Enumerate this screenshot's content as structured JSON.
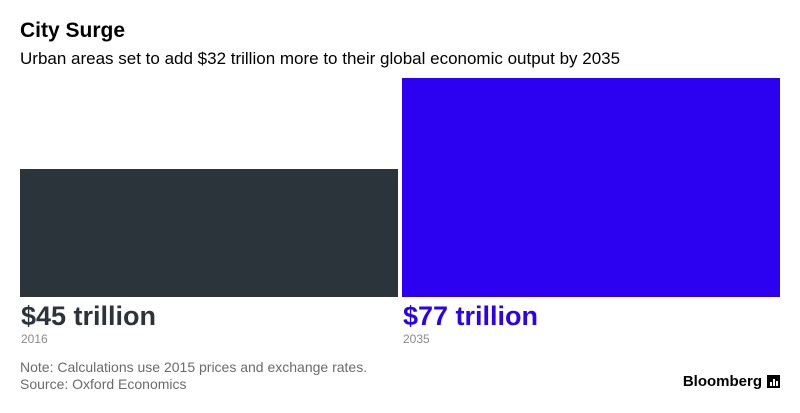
{
  "header": {
    "title": "City Surge",
    "subtitle": "Urban areas set to add $32 trillion more to their global economic output by 2035"
  },
  "chart_data": {
    "type": "bar",
    "categories": [
      "2016",
      "2035"
    ],
    "values": [
      45,
      77
    ],
    "value_labels": [
      "$45 trillion",
      "$77 trillion"
    ],
    "colors": [
      "#2c343b",
      "#2c00f0"
    ],
    "ylim": [
      0,
      77
    ],
    "grid": false,
    "legend": "none"
  },
  "footer": {
    "note": "Note: Calculations use 2015 prices and exchange rates.",
    "source": "Source: Oxford Economics",
    "brand": "Bloomberg"
  }
}
